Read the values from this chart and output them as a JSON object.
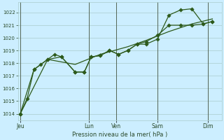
{
  "title": "Pression niveau de la mer( hPa )",
  "bg_color": "#cceeff",
  "grid_color": "#aacccc",
  "line_color": "#2d5a1b",
  "ylim": [
    1013.5,
    1022.8
  ],
  "yticks": [
    1014,
    1015,
    1016,
    1017,
    1018,
    1019,
    1020,
    1021,
    1022
  ],
  "day_labels": [
    "Jeu",
    "Lun",
    "Ven",
    "Sam",
    "Dim"
  ],
  "day_positions": [
    0,
    3.0,
    4.2,
    6.0,
    8.2
  ],
  "xmin": -0.1,
  "xmax": 8.8,
  "series1_x": [
    0,
    0.3,
    0.6,
    0.9,
    1.2,
    1.5,
    1.8,
    2.4,
    2.8,
    3.1,
    3.5,
    3.9,
    4.3,
    4.7,
    5.1,
    5.5,
    6.0,
    6.5,
    7.0,
    7.5,
    8.0,
    8.4
  ],
  "series1_y": [
    1014.0,
    1015.2,
    1017.5,
    1017.9,
    1018.3,
    1018.7,
    1018.5,
    1017.3,
    1017.3,
    1018.5,
    1018.6,
    1019.0,
    1018.7,
    1019.0,
    1019.5,
    1019.5,
    1019.9,
    1021.8,
    1022.2,
    1022.3,
    1021.1,
    1021.3
  ],
  "series2_x": [
    0,
    0.6,
    1.2,
    1.8,
    2.4,
    2.8,
    3.1,
    3.5,
    3.9,
    4.3,
    4.7,
    5.1,
    5.5,
    6.0,
    6.5,
    7.0,
    7.5,
    8.0,
    8.4
  ],
  "series2_y": [
    1014.0,
    1017.5,
    1018.3,
    1018.5,
    1017.3,
    1017.3,
    1018.5,
    1018.6,
    1019.0,
    1018.7,
    1019.0,
    1019.5,
    1019.7,
    1020.2,
    1021.0,
    1021.0,
    1021.0,
    1021.1,
    1021.3
  ],
  "series3_x": [
    0,
    1.2,
    2.4,
    3.5,
    4.7,
    5.5,
    6.5,
    7.5,
    8.4
  ],
  "series3_y": [
    1014.0,
    1018.3,
    1017.9,
    1018.7,
    1019.3,
    1019.8,
    1020.5,
    1021.1,
    1021.5
  ]
}
